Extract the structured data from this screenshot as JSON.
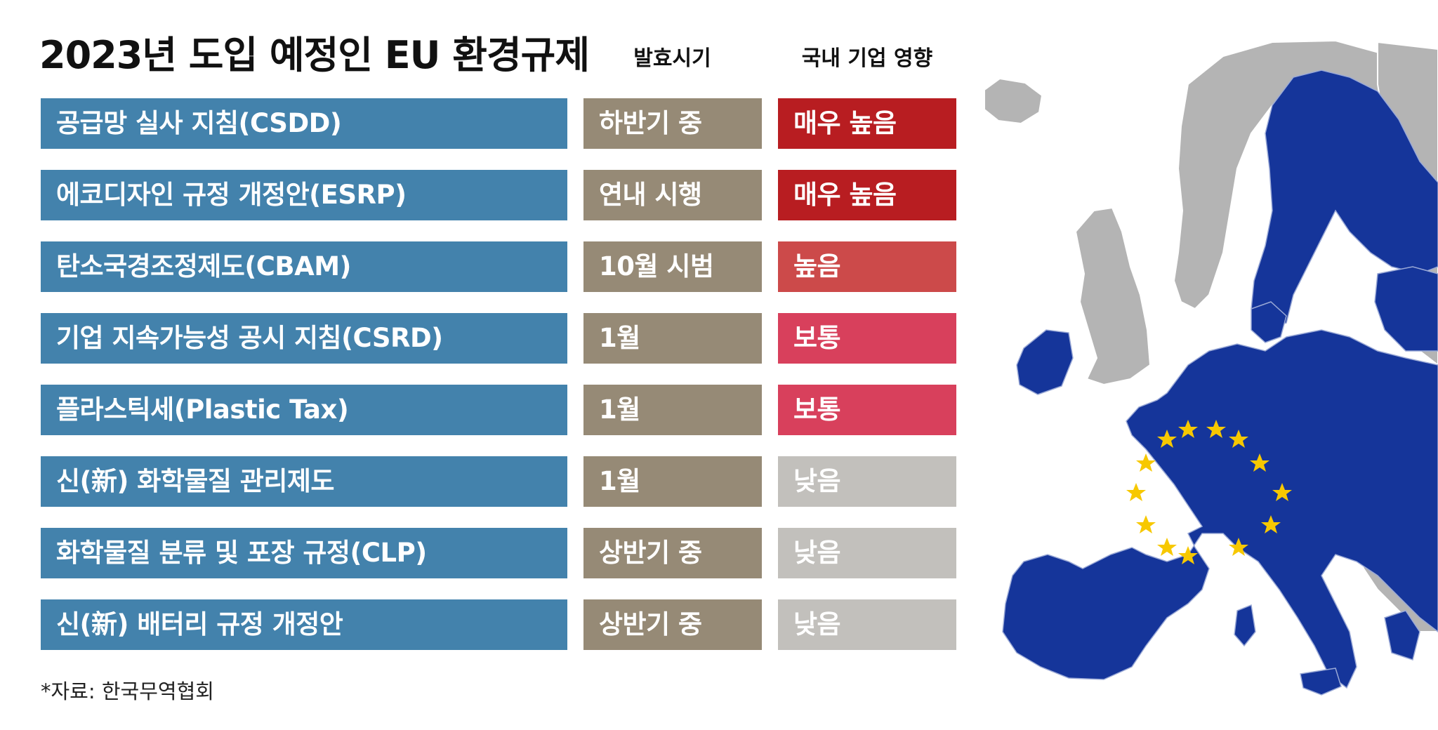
{
  "title": "2023년 도입 예정인 EU 환경규제",
  "headers": {
    "timing": "발효시기",
    "impact": "국내 기업 영향"
  },
  "source": "*자료: 한국무역협회",
  "colors": {
    "name_bg": "#4382ac",
    "timing_bg": "#968a76",
    "impact_very_high": "#b81d21",
    "impact_high": "#cc4a4a",
    "impact_medium": "#d8405c",
    "impact_low": "#c2c0bc",
    "map_eu": "#15359a",
    "map_non_eu": "#b4b4b4",
    "map_star": "#f7c800"
  },
  "map": {
    "icon": "eu-map-with-flag-stars"
  },
  "chart_data": {
    "type": "table",
    "title": "2023년 도입 예정인 EU 환경규제",
    "columns": [
      "",
      "발효시기",
      "국내 기업 영향"
    ],
    "rows": [
      {
        "name": "공급망 실사 지침(CSDD)",
        "timing": "하반기 중",
        "impact": "매우 높음",
        "level": "very_high"
      },
      {
        "name": "에코디자인 규정 개정안(ESRP)",
        "timing": "연내 시행",
        "impact": "매우 높음",
        "level": "very_high"
      },
      {
        "name": "탄소국경조정제도(CBAM)",
        "timing": "10월 시범",
        "impact": "높음",
        "level": "high"
      },
      {
        "name": "기업 지속가능성 공시 지침(CSRD)",
        "timing": "1월",
        "impact": "보통",
        "level": "medium"
      },
      {
        "name": "플라스틱세(Plastic Tax)",
        "timing": "1월",
        "impact": "보통",
        "level": "medium"
      },
      {
        "name": "신(新) 화학물질 관리제도",
        "timing": "1월",
        "impact": "낮음",
        "level": "low"
      },
      {
        "name": "화학물질 분류 및 포장 규정(CLP)",
        "timing": "상반기 중",
        "impact": "낮음",
        "level": "low"
      },
      {
        "name": "신(新) 배터리 규정 개정안",
        "timing": "상반기 중",
        "impact": "낮음",
        "level": "low"
      }
    ],
    "source": "*자료: 한국무역협회"
  }
}
